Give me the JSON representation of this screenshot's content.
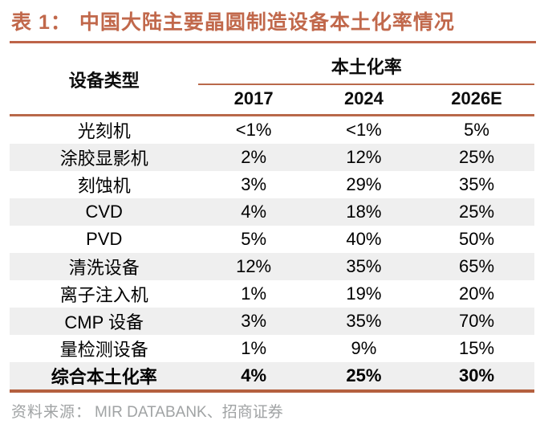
{
  "title": {
    "prefix": "表 1：",
    "text": "中国大陆主要晶圆制造设备本土化率情况"
  },
  "accent_color": "#B9694A",
  "row_stripe_color": "#EFEFEF",
  "table": {
    "equipment_col_header": "设备类型",
    "group_header": "本土化率",
    "year_headers": [
      "2017",
      "2024",
      "2026E"
    ],
    "rows": [
      {
        "name": "光刻机",
        "values": [
          "<1%",
          "<1%",
          "5%"
        ],
        "bold": false
      },
      {
        "name": "涂胶显影机",
        "values": [
          "2%",
          "12%",
          "25%"
        ],
        "bold": false
      },
      {
        "name": "刻蚀机",
        "values": [
          "3%",
          "29%",
          "35%"
        ],
        "bold": false
      },
      {
        "name": "CVD",
        "values": [
          "4%",
          "18%",
          "25%"
        ],
        "bold": false
      },
      {
        "name": "PVD",
        "values": [
          "5%",
          "40%",
          "50%"
        ],
        "bold": false
      },
      {
        "name": "清洗设备",
        "values": [
          "12%",
          "35%",
          "65%"
        ],
        "bold": false
      },
      {
        "name": "离子注入机",
        "values": [
          "1%",
          "19%",
          "20%"
        ],
        "bold": false
      },
      {
        "name": "CMP 设备",
        "values": [
          "3%",
          "35%",
          "70%"
        ],
        "bold": false
      },
      {
        "name": "量检测设备",
        "values": [
          "1%",
          "9%",
          "15%"
        ],
        "bold": false
      },
      {
        "name": "综合本土化率",
        "values": [
          "4%",
          "25%",
          "30%"
        ],
        "bold": true
      }
    ]
  },
  "source": {
    "label": "资料来源：",
    "text": "MIR DATABANK、招商证券"
  }
}
